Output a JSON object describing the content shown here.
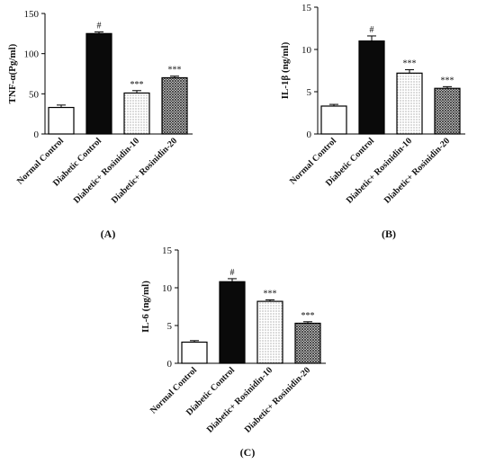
{
  "chart_data": [
    {
      "type": "bar",
      "panel_label": "(A)",
      "ylabel": "TNF-α(Pg/ml)",
      "ylim": [
        0,
        150
      ],
      "yticks": [
        0,
        50,
        100,
        150
      ],
      "categories": [
        "Normal Control",
        "Diabetic Control",
        "Diabetic+ Rosinidin-10",
        "Diabetic+ Rosinidin-20"
      ],
      "values": [
        33,
        125,
        51,
        70
      ],
      "errors": [
        3,
        2,
        3,
        2
      ],
      "annotations": [
        "",
        "#",
        "***",
        "***"
      ],
      "fills": [
        "white",
        "black",
        "dots",
        "crosshatch"
      ]
    },
    {
      "type": "bar",
      "panel_label": "(B)",
      "ylabel": "IL-1β (ng/ml)",
      "ylim": [
        0,
        15
      ],
      "yticks": [
        0,
        5,
        10,
        15
      ],
      "categories": [
        "Normal Control",
        "Diabetic Control",
        "Diabetic+ Rosinidin-10",
        "Diabetic+ Rosinidin-20"
      ],
      "values": [
        3.3,
        11.0,
        7.2,
        5.4
      ],
      "errors": [
        0.2,
        0.6,
        0.4,
        0.2
      ],
      "annotations": [
        "",
        "#",
        "***",
        "***"
      ],
      "fills": [
        "white",
        "black",
        "dots",
        "crosshatch"
      ]
    },
    {
      "type": "bar",
      "panel_label": "(C)",
      "ylabel": "IL-6 (ng/ml)",
      "ylim": [
        0,
        15
      ],
      "yticks": [
        0,
        5,
        10,
        15
      ],
      "categories": [
        "Normal Control",
        "Diabetic Control",
        "Diabetic+ Rosinidin-10",
        "Diabetic+ Rosinidin-20"
      ],
      "values": [
        2.8,
        10.8,
        8.2,
        5.3
      ],
      "errors": [
        0.2,
        0.4,
        0.2,
        0.2
      ],
      "annotations": [
        "",
        "#",
        "***",
        "***"
      ],
      "fills": [
        "white",
        "black",
        "dots",
        "crosshatch"
      ]
    }
  ]
}
